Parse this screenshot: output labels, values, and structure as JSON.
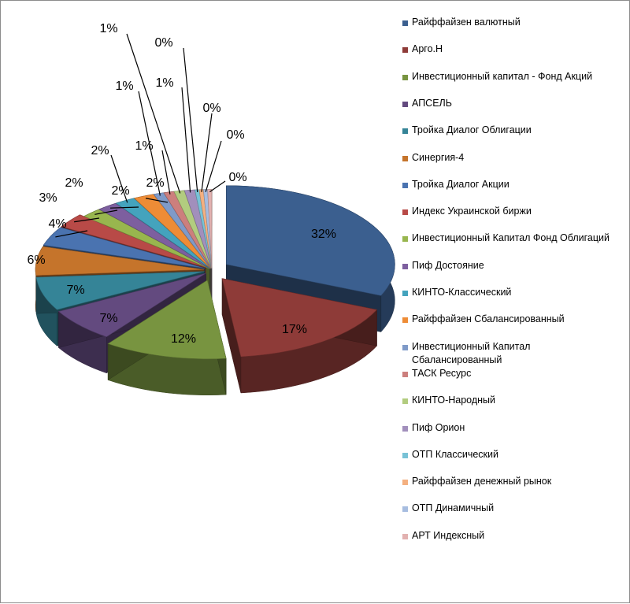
{
  "chart_data": {
    "type": "pie",
    "three_d": true,
    "exploded": true,
    "legend_position": "right",
    "slices": [
      {
        "label": "Райффайзен валютный",
        "value": 32,
        "data_label": "32%",
        "color": "#3b5f8f"
      },
      {
        "label": "Арго.Н",
        "value": 17,
        "data_label": "17%",
        "color": "#8e3b38"
      },
      {
        "label": "Инвестиционный капитал - Фонд Акций",
        "value": 12,
        "data_label": "12%",
        "color": "#789440"
      },
      {
        "label": "АПСЕЛЬ",
        "value": 7,
        "data_label": "7%",
        "color": "#634a7f"
      },
      {
        "label": "Тройка Диалог Облигации",
        "value": 7,
        "data_label": "7%",
        "color": "#358497"
      },
      {
        "label": "Синергия-4",
        "value": 6,
        "data_label": "6%",
        "color": "#c5742b"
      },
      {
        "label": "Тройка Диалог Акции",
        "value": 4,
        "data_label": "4%",
        "color": "#4a73b0"
      },
      {
        "label": "Индекс Украинской биржи",
        "value": 3,
        "data_label": "3%",
        "color": "#b84a47"
      },
      {
        "label": "Инвестиционный Капитал Фонд Облигаций",
        "value": 2,
        "data_label": "2%",
        "color": "#98b64e"
      },
      {
        "label": "Пиф Достояние",
        "value": 2,
        "data_label": "2%",
        "color": "#7d5f9f"
      },
      {
        "label": "КИНТО-Классический",
        "value": 2,
        "data_label": "2%",
        "color": "#44a3bd"
      },
      {
        "label": "Райффайзен Сбалансированный",
        "value": 2,
        "data_label": "2%",
        "color": "#ee8c36"
      },
      {
        "label": "Инвестиционный Капитал Сбалансированный",
        "value": 1,
        "data_label": "1%",
        "color": "#7f9ac8"
      },
      {
        "label": "ТАСК Ресурс",
        "value": 1,
        "data_label": "1%",
        "color": "#cc7f7d"
      },
      {
        "label": "КИНТО-Народный",
        "value": 1,
        "data_label": "1%",
        "color": "#b2cc7f"
      },
      {
        "label": "Пиф Орион",
        "value": 1,
        "data_label": "1%",
        "color": "#a28fbc"
      },
      {
        "label": "ОТП Классический",
        "value": 0.4,
        "data_label": "0%",
        "color": "#78c2d6"
      },
      {
        "label": "Райффайзен денежный рынок",
        "value": 0.4,
        "data_label": "0%",
        "color": "#f4b080"
      },
      {
        "label": "ОТП Динамичный",
        "value": 0.4,
        "data_label": "0%",
        "color": "#a7bde0"
      },
      {
        "label": "АРТ Индексный",
        "value": 0.4,
        "data_label": "0%",
        "color": "#e2b1b0"
      }
    ]
  }
}
